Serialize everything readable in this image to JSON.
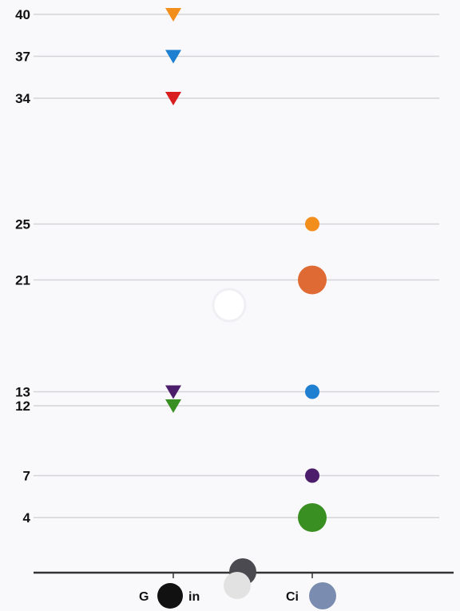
{
  "chart_data": {
    "type": "scatter",
    "title": "",
    "xlabel": "",
    "ylabel": "",
    "categories": [
      "G",
      "in",
      "Ci"
    ],
    "category_groups": [
      "Grain",
      "Ci"
    ],
    "ylim": [
      0,
      41
    ],
    "grid": "horizontal",
    "yticks": [
      4,
      7,
      12,
      13,
      21,
      25,
      34,
      37,
      40
    ],
    "points": [
      {
        "category": "Grain",
        "y": 40,
        "shape": "triangle-down",
        "color": "#f28e1c",
        "size": "medium"
      },
      {
        "category": "Grain",
        "y": 37,
        "shape": "triangle-down",
        "color": "#1f7fd1",
        "size": "medium"
      },
      {
        "category": "Grain",
        "y": 34,
        "shape": "triangle-down",
        "color": "#d81e1e",
        "size": "medium"
      },
      {
        "category": "Grain",
        "y": 13,
        "shape": "triangle-down",
        "color": "#4b1d6b",
        "size": "medium"
      },
      {
        "category": "Grain",
        "y": 12,
        "shape": "triangle-down",
        "color": "#3a8f22",
        "size": "medium"
      },
      {
        "category": "Ci",
        "y": 25,
        "shape": "circle",
        "color": "#f28e1c",
        "size": "small"
      },
      {
        "category": "Ci",
        "y": 21,
        "shape": "circle",
        "color": "#e06a33",
        "size": "large"
      },
      {
        "category": "Ci",
        "y": 13,
        "shape": "circle",
        "color": "#1f7fd1",
        "size": "small"
      },
      {
        "category": "Ci",
        "y": 7,
        "shape": "circle",
        "color": "#4b1d6b",
        "size": "small"
      },
      {
        "category": "Ci",
        "y": 4,
        "shape": "circle",
        "color": "#3a8f22",
        "size": "large"
      }
    ],
    "overlay_dots": [
      {
        "name": "white-ring-dot",
        "color": "#ffffff"
      },
      {
        "name": "dark-gray-dot",
        "color": "#4a4a50"
      },
      {
        "name": "light-gray-dot",
        "color": "#e2e2e2"
      },
      {
        "name": "black-dot",
        "color": "#111111"
      },
      {
        "name": "slate-blue-dot",
        "color": "#7a8cb0"
      }
    ]
  }
}
